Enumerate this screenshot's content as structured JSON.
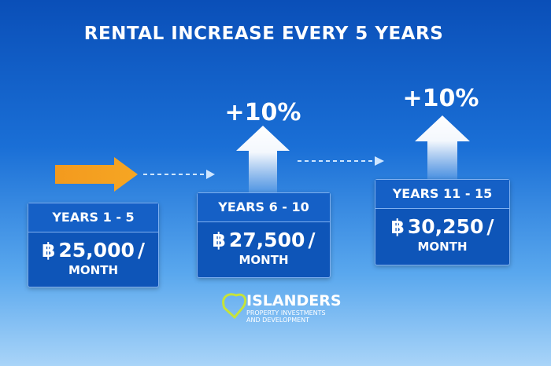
{
  "title": "RENTAL INCREASE EVERY 5 YEARS",
  "steps": [
    {
      "period": "YEARS 1 - 5",
      "currency": "฿",
      "amount": "25,000",
      "separator": "/",
      "unit": "MONTH"
    },
    {
      "period": "YEARS 6 - 10",
      "currency": "฿",
      "amount": "27,500",
      "separator": "/",
      "unit": "MONTH"
    },
    {
      "period": "YEARS 11 - 15",
      "currency": "฿",
      "amount": "30,250",
      "separator": "/",
      "unit": "MONTH"
    }
  ],
  "increases": [
    "+10%",
    "+10%"
  ],
  "logo": {
    "name": "ISLANDERS",
    "tagline_1": "PROPERTY INVESTMENTS",
    "tagline_2": "AND DEVELOPMENT"
  }
}
